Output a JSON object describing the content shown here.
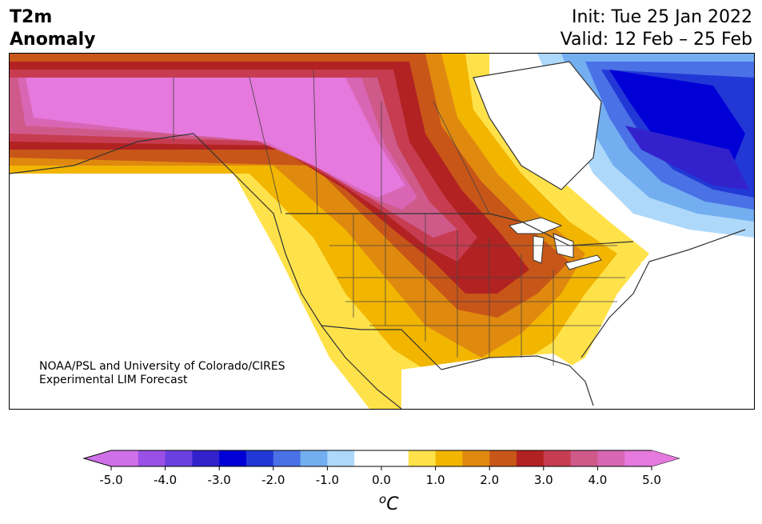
{
  "header": {
    "title_line1": "T2m",
    "title_line2": "Anomaly",
    "init": "Init: Tue 25 Jan 2022",
    "valid": "Valid: 12 Feb – 25 Feb"
  },
  "map": {
    "credit_line1": "NOAA/PSL and University of Colorado/CIRES",
    "credit_line2": "Experimental LIM Forecast",
    "colors": {
      "land_neutral": "#ffffff",
      "warm": [
        "#ffe24a",
        "#f2b500",
        "#e0890f",
        "#c85618",
        "#b22222",
        "#c73c50",
        "#cf5a8a",
        "#d966b4",
        "#e579dd"
      ],
      "cold": [
        "#add8fa",
        "#73aef0",
        "#4a71e6",
        "#2238d6",
        "#0000d6",
        "#3322cc",
        "#6a40e0",
        "#9a50e6",
        "#d070e8"
      ],
      "border": "#333333"
    }
  },
  "colorbar": {
    "tick_labels": [
      "-5.0",
      "-4.0",
      "-3.0",
      "-2.0",
      "-1.0",
      "0.0",
      "1.0",
      "2.0",
      "3.0",
      "4.0",
      "5.0"
    ],
    "unit_superscript": "o",
    "unit_main": "C",
    "colors": [
      "#d070e8",
      "#9a50e6",
      "#6a40e0",
      "#3322cc",
      "#0000d6",
      "#2238d6",
      "#4a71e6",
      "#73aef0",
      "#add8fa",
      "#ffffff",
      "#ffffff",
      "#ffe24a",
      "#f2b500",
      "#e0890f",
      "#c85618",
      "#b22222",
      "#c73c50",
      "#cf5a8a",
      "#d966b4",
      "#e579dd"
    ],
    "min_color": "#d070e8",
    "max_color": "#e579dd"
  }
}
